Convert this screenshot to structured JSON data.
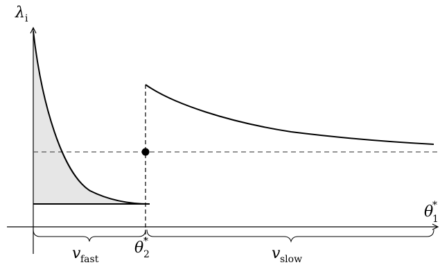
{
  "labels": {
    "y_axis_main": "λ",
    "y_axis_sub": "i",
    "x_axis_main": "θ",
    "x_axis_sub": "1",
    "x_axis_sup": "*",
    "threshold_main": "θ",
    "threshold_sub": "2",
    "threshold_sup": "*",
    "fast_main": "v",
    "fast_sub": "fast",
    "slow_main": "v",
    "slow_sub": "slow"
  },
  "styles": {
    "stroke_color": "#000000",
    "fill_color": "#e6e6e6",
    "dashed_line_color": "#555555"
  }
}
